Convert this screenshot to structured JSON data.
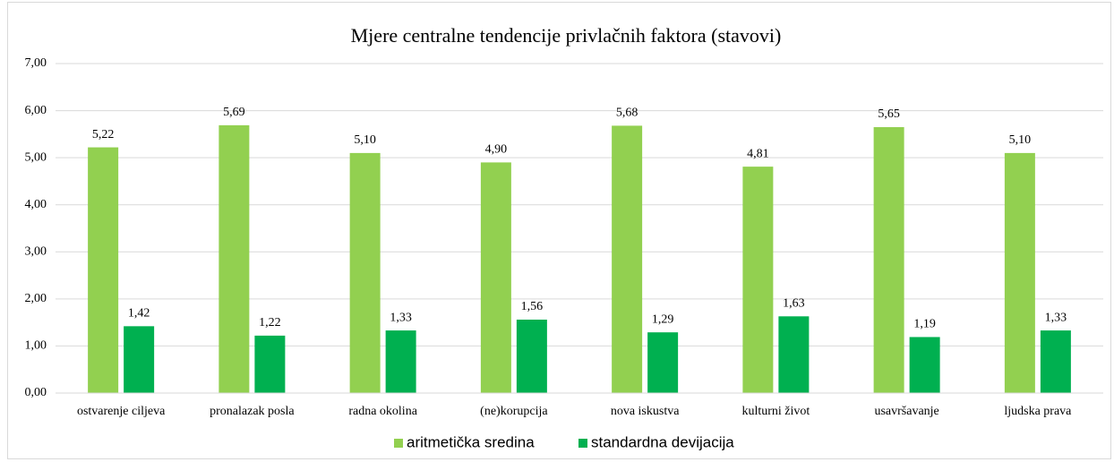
{
  "chart_data": {
    "type": "bar",
    "title": "Mjere centralne tendencije privlačnih faktora (stavovi)",
    "categories": [
      "ostvarenje ciljeva",
      "pronalazak posla",
      "radna okolina",
      "(ne)korupcija",
      "nova iskustva",
      "kulturni život",
      "usavršavanje",
      "ljudska prava"
    ],
    "series": [
      {
        "name": "aritmetička sredina",
        "color": "#92d050",
        "values": [
          5.22,
          5.69,
          5.1,
          4.9,
          5.68,
          4.81,
          5.65,
          5.1
        ],
        "value_labels": [
          "5,22",
          "5,69",
          "5,10",
          "4,90",
          "5,68",
          "4,81",
          "5,65",
          "5,10"
        ]
      },
      {
        "name": "standardna devijacija",
        "color": "#00b050",
        "values": [
          1.42,
          1.22,
          1.33,
          1.56,
          1.29,
          1.63,
          1.19,
          1.33
        ],
        "value_labels": [
          "1,42",
          "1,22",
          "1,33",
          "1,56",
          "1,29",
          "1,63",
          "1,19",
          "1,33"
        ]
      }
    ],
    "ylim": [
      0,
      7
    ],
    "yticks": [
      {
        "value": 0,
        "label": "0,00"
      },
      {
        "value": 1,
        "label": "1,00"
      },
      {
        "value": 2,
        "label": "2,00"
      },
      {
        "value": 3,
        "label": "3,00"
      },
      {
        "value": 4,
        "label": "4,00"
      },
      {
        "value": 5,
        "label": "5,00"
      },
      {
        "value": 6,
        "label": "6,00"
      },
      {
        "value": 7,
        "label": "7,00"
      }
    ],
    "grid": true,
    "legend": "bottom"
  }
}
